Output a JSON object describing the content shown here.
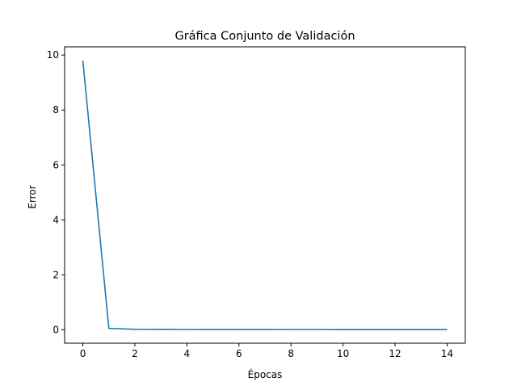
{
  "chart_data": {
    "type": "line",
    "title": "Gráfica Conjunto de Validación",
    "xlabel": "Épocas",
    "ylabel": "Error",
    "xlim": [
      -0.7,
      14.7
    ],
    "ylim": [
      -0.49,
      10.3
    ],
    "xticks": [
      0,
      2,
      4,
      6,
      8,
      10,
      12,
      14
    ],
    "yticks": [
      0,
      2,
      4,
      6,
      8,
      10
    ],
    "grid": false,
    "series": [
      {
        "color": "#1f77b4",
        "x": [
          0,
          1,
          2,
          3,
          4,
          5,
          6,
          7,
          8,
          9,
          10,
          11,
          12,
          13,
          14
        ],
        "y": [
          9.8,
          0.05,
          0.015,
          0.012,
          0.01,
          0.009,
          0.008,
          0.007,
          0.006,
          0.006,
          0.005,
          0.005,
          0.005,
          0.004,
          0.004
        ]
      }
    ]
  }
}
